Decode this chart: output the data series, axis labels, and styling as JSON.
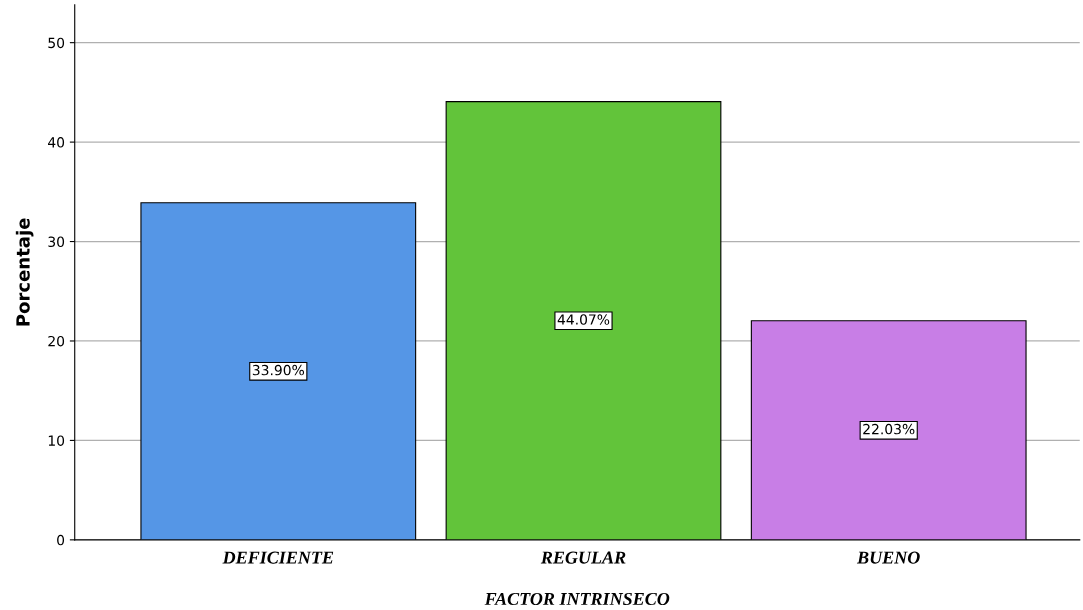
{
  "chart_data": {
    "type": "bar",
    "xlabel": "FACTOR INTRINSECO",
    "ylabel": "Porcentaje",
    "categories": [
      "DEFICIENTE",
      "REGULAR",
      "BUENO"
    ],
    "values": [
      33.9,
      44.07,
      22.03
    ],
    "value_labels": [
      "33.90%",
      "44.07%",
      "22.03%"
    ],
    "colors": [
      "#5596e6",
      "#62c43a",
      "#c87ee6"
    ],
    "ylim": [
      0,
      53.8
    ],
    "yticks": [
      0,
      10,
      20,
      30,
      40,
      50
    ],
    "grid": "y",
    "legend": false
  }
}
